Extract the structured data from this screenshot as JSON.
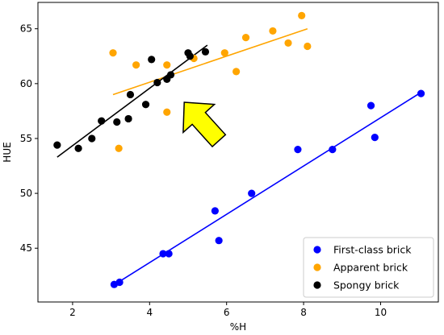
{
  "chart_data": {
    "type": "scatter",
    "xlabel": "%H",
    "ylabel": "HUE",
    "xlim": [
      1.1,
      11.5
    ],
    "ylim": [
      40.1,
      67.4
    ],
    "xticks": [
      2,
      4,
      6,
      8,
      10
    ],
    "yticks": [
      45,
      50,
      55,
      60,
      65
    ],
    "grid": false,
    "legend_position": "lower right",
    "series": [
      {
        "name": "First-class brick",
        "color": "#0000ff",
        "points": [
          [
            3.08,
            41.7
          ],
          [
            3.22,
            41.9
          ],
          [
            4.35,
            44.5
          ],
          [
            4.5,
            44.5
          ],
          [
            5.7,
            48.4
          ],
          [
            5.8,
            45.7
          ],
          [
            6.65,
            50.0
          ],
          [
            7.85,
            54.0
          ],
          [
            8.75,
            54.0
          ],
          [
            9.75,
            58.0
          ],
          [
            9.85,
            55.1
          ],
          [
            11.05,
            59.1
          ]
        ],
        "fit": [
          [
            3.05,
            41.6
          ],
          [
            11.05,
            59.2
          ]
        ]
      },
      {
        "name": "Apparent brick",
        "color": "#ffa500",
        "points": [
          [
            3.05,
            62.8
          ],
          [
            3.2,
            54.1
          ],
          [
            3.65,
            61.7
          ],
          [
            4.45,
            61.7
          ],
          [
            4.45,
            57.4
          ],
          [
            5.15,
            62.3
          ],
          [
            5.95,
            62.8
          ],
          [
            6.25,
            61.1
          ],
          [
            6.5,
            64.2
          ],
          [
            7.2,
            64.8
          ],
          [
            7.6,
            63.7
          ],
          [
            7.95,
            66.2
          ],
          [
            8.1,
            63.4
          ]
        ],
        "fit": [
          [
            3.05,
            59.0
          ],
          [
            8.1,
            65.0
          ]
        ]
      },
      {
        "name": "Spongy brick",
        "color": "#000000",
        "points": [
          [
            1.6,
            54.4
          ],
          [
            2.15,
            54.1
          ],
          [
            2.5,
            55.0
          ],
          [
            2.75,
            56.6
          ],
          [
            3.15,
            56.5
          ],
          [
            3.45,
            56.8
          ],
          [
            3.5,
            59.0
          ],
          [
            3.9,
            58.1
          ],
          [
            4.05,
            62.2
          ],
          [
            4.2,
            60.1
          ],
          [
            4.45,
            60.4
          ],
          [
            4.55,
            60.8
          ],
          [
            5.0,
            62.8
          ],
          [
            5.05,
            62.5
          ],
          [
            5.45,
            62.9
          ]
        ],
        "fit": [
          [
            1.6,
            53.3
          ],
          [
            5.5,
            63.5
          ]
        ]
      }
    ],
    "annotation": {
      "type": "arrow",
      "color": "#ffff00",
      "stroke": "#000000",
      "direction": "up-left",
      "tail": [
        5.8,
        54.8
      ],
      "head": [
        4.9,
        58.3
      ]
    }
  }
}
